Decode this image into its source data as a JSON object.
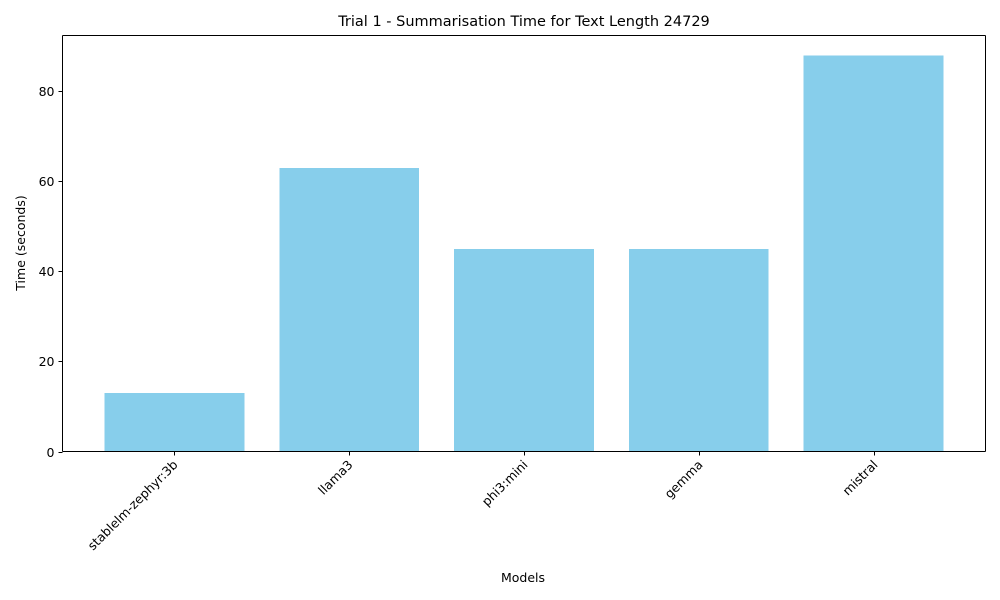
{
  "chart_data": {
    "type": "bar",
    "title": "Trial 1 - Summarisation Time for Text Length 24729",
    "xlabel": "Models",
    "ylabel": "Time (seconds)",
    "categories": [
      "stablelm-zephyr:3b",
      "llama3",
      "phi3:mini",
      "gemma",
      "mistral"
    ],
    "values": [
      13,
      63,
      45,
      45,
      88
    ],
    "ylim": [
      0,
      92.4
    ],
    "yticks": [
      0,
      20,
      40,
      60,
      80
    ],
    "x_tick_rotation_deg": 45,
    "grid": false,
    "legend": "none",
    "bar_color": "#87CEEB"
  }
}
